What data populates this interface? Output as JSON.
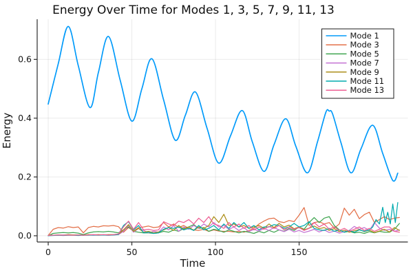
{
  "figure": {
    "background": "#ffffff"
  },
  "chart_data": {
    "type": "line",
    "title": "Energy Over Time for Modes 1, 3, 5, 7, 9, 11, 13",
    "xlabel": "Time",
    "ylabel": "Energy",
    "xlim": [
      -6.6,
      215
    ],
    "ylim": [
      -0.0212,
      0.7365
    ],
    "x_ticks": [
      0,
      50,
      100,
      150
    ],
    "x_tick_labels": [
      "0",
      "50",
      "100",
      "150"
    ],
    "y_ticks": [
      0,
      0.2,
      0.4,
      0.6
    ],
    "y_tick_labels": [
      "0.0",
      "0.2",
      "0.4",
      "0.6"
    ],
    "grid": true,
    "grid_color": "rgba(0,0,0,0.08)",
    "axis_color": "#2c2c2c",
    "legend": {
      "position": "top-right",
      "border_color": "#1a1a1a",
      "background": "#ffffff"
    },
    "x_shared": [
      0,
      3,
      6,
      9,
      12,
      15,
      18,
      21,
      24,
      27,
      30,
      33,
      36,
      39,
      42,
      45,
      48,
      51,
      54,
      57,
      60,
      63,
      66,
      69,
      72,
      75,
      78,
      81,
      84,
      87,
      90,
      93,
      96,
      99,
      102,
      105,
      108,
      111,
      114,
      117,
      120,
      123,
      126,
      129,
      132,
      135,
      138,
      141,
      144,
      147,
      150,
      153,
      156,
      159,
      162,
      165,
      168,
      171,
      174,
      177,
      180,
      183,
      186,
      189,
      192,
      195,
      198,
      201,
      204,
      207,
      210
    ],
    "series": [
      {
        "name": "Mode 1",
        "color": "#009AFA",
        "width": 1.7,
        "smooth": true,
        "x": [
          0,
          6,
          12,
          18,
          25,
          30,
          36,
          43,
          50,
          56,
          62,
          69,
          76,
          82,
          88,
          95,
          102,
          109,
          116,
          122,
          129,
          135,
          142,
          148,
          155,
          161,
          166,
          168,
          170,
          175,
          181,
          187,
          194,
          200,
          206,
          209
        ],
        "y": [
          0.448,
          0.585,
          0.712,
          0.578,
          0.436,
          0.555,
          0.678,
          0.53,
          0.39,
          0.5,
          0.602,
          0.462,
          0.325,
          0.41,
          0.489,
          0.365,
          0.247,
          0.34,
          0.426,
          0.32,
          0.219,
          0.31,
          0.398,
          0.305,
          0.214,
          0.32,
          0.42,
          0.424,
          0.415,
          0.317,
          0.214,
          0.296,
          0.376,
          0.28,
          0.188,
          0.213
        ]
      },
      {
        "name": "Mode 3",
        "color": "#E36F47",
        "width": 1.25,
        "smooth": false,
        "y": [
          0.001,
          0.022,
          0.028,
          0.026,
          0.031,
          0.028,
          0.03,
          0.01,
          0.028,
          0.032,
          0.03,
          0.034,
          0.033,
          0.035,
          0.031,
          0.012,
          0.028,
          0.016,
          0.028,
          0.03,
          0.033,
          0.028,
          0.03,
          0.045,
          0.03,
          0.04,
          0.028,
          0.035,
          0.025,
          0.02,
          0.018,
          0.022,
          0.015,
          0.02,
          0.016,
          0.015,
          0.015,
          0.013,
          0.015,
          0.012,
          0.018,
          0.025,
          0.04,
          0.05,
          0.058,
          0.06,
          0.048,
          0.045,
          0.052,
          0.048,
          0.07,
          0.096,
          0.035,
          0.045,
          0.048,
          0.04,
          0.045,
          0.026,
          0.04,
          0.094,
          0.07,
          0.09,
          0.058,
          0.072,
          0.08,
          0.045,
          0.055,
          0.065,
          0.055,
          0.06,
          0.062
        ]
      },
      {
        "name": "Mode 5",
        "color": "#3DA44E",
        "width": 1.25,
        "smooth": false,
        "y": [
          0.0,
          0.008,
          0.01,
          0.011,
          0.01,
          0.011,
          0.009,
          0.004,
          0.01,
          0.013,
          0.014,
          0.013,
          0.015,
          0.013,
          0.01,
          0.02,
          0.03,
          0.015,
          0.012,
          0.01,
          0.01,
          0.008,
          0.01,
          0.015,
          0.012,
          0.02,
          0.015,
          0.025,
          0.03,
          0.038,
          0.025,
          0.028,
          0.015,
          0.022,
          0.018,
          0.012,
          0.02,
          0.015,
          0.01,
          0.015,
          0.012,
          0.008,
          0.015,
          0.01,
          0.018,
          0.012,
          0.02,
          0.015,
          0.025,
          0.018,
          0.03,
          0.022,
          0.045,
          0.062,
          0.045,
          0.06,
          0.065,
          0.035,
          0.02,
          0.012,
          0.015,
          0.01,
          0.012,
          0.008,
          0.014,
          0.01,
          0.015,
          0.012,
          0.012,
          0.022,
          0.042
        ]
      },
      {
        "name": "Mode 7",
        "color": "#C371D2",
        "width": 1.25,
        "smooth": false,
        "y": [
          0.001,
          0.002,
          0.002,
          0.003,
          0.002,
          0.003,
          0.002,
          0.002,
          0.003,
          0.002,
          0.003,
          0.003,
          0.002,
          0.003,
          0.004,
          0.015,
          0.035,
          0.012,
          0.025,
          0.018,
          0.01,
          0.015,
          0.012,
          0.03,
          0.02,
          0.035,
          0.015,
          0.03,
          0.022,
          0.035,
          0.025,
          0.04,
          0.03,
          0.045,
          0.03,
          0.035,
          0.022,
          0.03,
          0.018,
          0.028,
          0.014,
          0.022,
          0.016,
          0.025,
          0.018,
          0.028,
          0.02,
          0.014,
          0.022,
          0.013,
          0.018,
          0.011,
          0.016,
          0.022,
          0.013,
          0.02,
          0.011,
          0.016,
          0.009,
          0.014,
          0.018,
          0.032,
          0.022,
          0.028,
          0.018,
          0.045,
          0.026,
          0.018,
          0.022,
          0.015,
          0.02
        ]
      },
      {
        "name": "Mode 9",
        "color": "#AC8E18",
        "width": 1.25,
        "smooth": false,
        "y": [
          0.001,
          0.002,
          0.003,
          0.002,
          0.004,
          0.003,
          0.003,
          0.002,
          0.004,
          0.003,
          0.004,
          0.003,
          0.004,
          0.004,
          0.005,
          0.02,
          0.038,
          0.015,
          0.025,
          0.012,
          0.015,
          0.01,
          0.013,
          0.02,
          0.028,
          0.018,
          0.035,
          0.022,
          0.03,
          0.018,
          0.03,
          0.025,
          0.035,
          0.065,
          0.045,
          0.073,
          0.035,
          0.04,
          0.03,
          0.035,
          0.025,
          0.03,
          0.035,
          0.026,
          0.04,
          0.028,
          0.042,
          0.03,
          0.036,
          0.024,
          0.03,
          0.02,
          0.026,
          0.033,
          0.024,
          0.028,
          0.018,
          0.024,
          0.014,
          0.019,
          0.012,
          0.017,
          0.021,
          0.014,
          0.019,
          0.011,
          0.016,
          0.022,
          0.013,
          0.028,
          0.018
        ]
      },
      {
        "name": "Mode 11",
        "color": "#00AAAE",
        "width": 1.25,
        "smooth": false,
        "x": [
          0,
          3,
          6,
          9,
          12,
          15,
          18,
          21,
          24,
          27,
          30,
          33,
          36,
          39,
          42,
          45,
          48,
          51,
          54,
          57,
          60,
          63,
          66,
          69,
          72,
          75,
          78,
          81,
          84,
          87,
          90,
          93,
          96,
          99,
          102,
          105,
          108,
          111,
          114,
          117,
          120,
          123,
          126,
          129,
          132,
          135,
          138,
          141,
          144,
          147,
          150,
          153,
          156,
          159,
          162,
          165,
          168,
          171,
          174,
          177,
          180,
          183,
          186,
          189,
          192,
          194,
          196,
          198,
          200,
          201.5,
          203,
          204.5,
          206,
          207.5,
          209
        ],
        "y": [
          0.0,
          0.001,
          0.002,
          0.001,
          0.002,
          0.002,
          0.001,
          0.002,
          0.002,
          0.003,
          0.002,
          0.003,
          0.002,
          0.003,
          0.004,
          0.035,
          0.048,
          0.02,
          0.035,
          0.01,
          0.012,
          0.008,
          0.01,
          0.022,
          0.028,
          0.025,
          0.03,
          0.02,
          0.025,
          0.018,
          0.035,
          0.02,
          0.025,
          0.035,
          0.02,
          0.04,
          0.025,
          0.045,
          0.03,
          0.045,
          0.025,
          0.035,
          0.02,
          0.03,
          0.03,
          0.038,
          0.035,
          0.025,
          0.03,
          0.042,
          0.03,
          0.035,
          0.048,
          0.025,
          0.02,
          0.018,
          0.025,
          0.015,
          0.02,
          0.012,
          0.018,
          0.012,
          0.02,
          0.015,
          0.02,
          0.03,
          0.055,
          0.04,
          0.097,
          0.045,
          0.08,
          0.04,
          0.108,
          0.045,
          0.113
        ]
      },
      {
        "name": "Mode 13",
        "color": "#ED5E93",
        "width": 1.25,
        "smooth": false,
        "y": [
          0.001,
          0.002,
          0.003,
          0.002,
          0.003,
          0.002,
          0.003,
          0.002,
          0.003,
          0.004,
          0.003,
          0.004,
          0.003,
          0.004,
          0.006,
          0.03,
          0.05,
          0.022,
          0.045,
          0.02,
          0.022,
          0.018,
          0.02,
          0.048,
          0.04,
          0.035,
          0.05,
          0.045,
          0.055,
          0.04,
          0.06,
          0.045,
          0.065,
          0.04,
          0.035,
          0.025,
          0.045,
          0.03,
          0.04,
          0.025,
          0.035,
          0.02,
          0.03,
          0.022,
          0.032,
          0.025,
          0.035,
          0.02,
          0.03,
          0.022,
          0.028,
          0.018,
          0.025,
          0.045,
          0.03,
          0.04,
          0.022,
          0.03,
          0.018,
          0.025,
          0.015,
          0.022,
          0.03,
          0.018,
          0.025,
          0.015,
          0.022,
          0.03,
          0.03,
          0.015,
          0.012
        ]
      }
    ]
  }
}
